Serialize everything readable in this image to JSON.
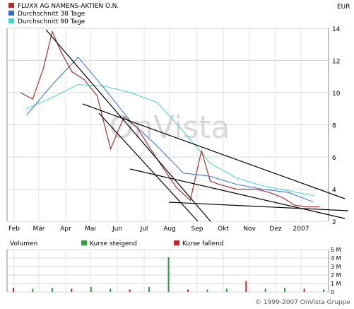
{
  "header": {
    "currency": "EUR"
  },
  "chart_data": [
    {
      "type": "line",
      "x_labels": [
        "Feb",
        "Mär",
        "Apr",
        "Mai",
        "Jun",
        "Jul",
        "Aug",
        "Sep",
        "Okt",
        "Nov",
        "Dez",
        "2007"
      ],
      "y_ticks": [
        2,
        4,
        6,
        8,
        10,
        12,
        14
      ],
      "ylim": [
        2,
        14
      ],
      "grid": true,
      "legend_position": "top-left",
      "watermark": "OnVista",
      "series": [
        {
          "name": "FLUXX AG NAMENS-AKTIEN O.N.",
          "color": "#b03030",
          "x": [
            "Feb",
            "Feb",
            "Mär",
            "Mär",
            "Mär",
            "Apr",
            "Apr",
            "Mai",
            "Mai",
            "Jun",
            "Jun",
            "Jul",
            "Jul",
            "Aug",
            "Aug",
            "Sep",
            "Sep",
            "Sep",
            "Okt",
            "Nov",
            "Nov",
            "Dez",
            "Dez",
            "2007",
            "2007"
          ],
          "values": [
            10.0,
            9.6,
            11.5,
            13.8,
            12.5,
            11.3,
            10.8,
            9.8,
            6.5,
            8.5,
            7.8,
            6.5,
            5.3,
            4.1,
            3.3,
            6.4,
            4.5,
            4.3,
            4.0,
            4.0,
            3.8,
            3.5,
            3.0,
            2.9,
            2.9
          ]
        },
        {
          "name": "Durchschnitt 38 Tage",
          "color": "#2a6fd6",
          "x": [
            "Feb",
            "Mär",
            "Apr",
            "Mai",
            "Jun",
            "Jul",
            "Aug",
            "Sep",
            "Okt",
            "Nov",
            "Dez",
            "2007"
          ],
          "values": [
            8.6,
            10.5,
            12.2,
            10.3,
            8.2,
            6.7,
            5.0,
            4.8,
            4.3,
            4.0,
            3.8,
            3.2
          ]
        },
        {
          "name": "Durchschnitt 90 Tage",
          "color": "#40d8c8",
          "x": [
            "Feb",
            "Mär",
            "Apr",
            "Mai",
            "Jun",
            "Jul",
            "Aug",
            "Sep",
            "Okt",
            "Nov",
            "Dez",
            "2007"
          ],
          "values": [
            9.0,
            9.7,
            10.5,
            10.4,
            10.0,
            9.4,
            7.6,
            5.6,
            4.7,
            4.2,
            3.9,
            3.6
          ]
        }
      ]
    },
    {
      "type": "bar",
      "title": "Volumen",
      "legend": [
        "Kurse steigend",
        "Kurse fallend"
      ],
      "legend_colors": [
        "#2e9e3e",
        "#c02a2a"
      ],
      "y_ticks": [
        "0",
        "1 M",
        "2 M",
        "3 M",
        "4 M",
        "5 M"
      ],
      "ylim": [
        0,
        5
      ],
      "unit": "M",
      "x_labels": [
        "Feb",
        "Mär",
        "Apr",
        "Mai",
        "Jun",
        "Jul",
        "Aug",
        "Sep",
        "Okt",
        "Nov",
        "Dez",
        "2007"
      ],
      "values_million_approx": [
        0.5,
        0.4,
        0.5,
        0.4,
        0.6,
        0.4,
        0.3,
        0.6,
        4.1,
        0.3,
        0.3,
        0.4,
        1.3,
        0.4,
        0.5,
        0.4,
        0.3
      ]
    }
  ],
  "footer": {
    "copyright": "© 1999-2007 OnVista Gruppe"
  }
}
